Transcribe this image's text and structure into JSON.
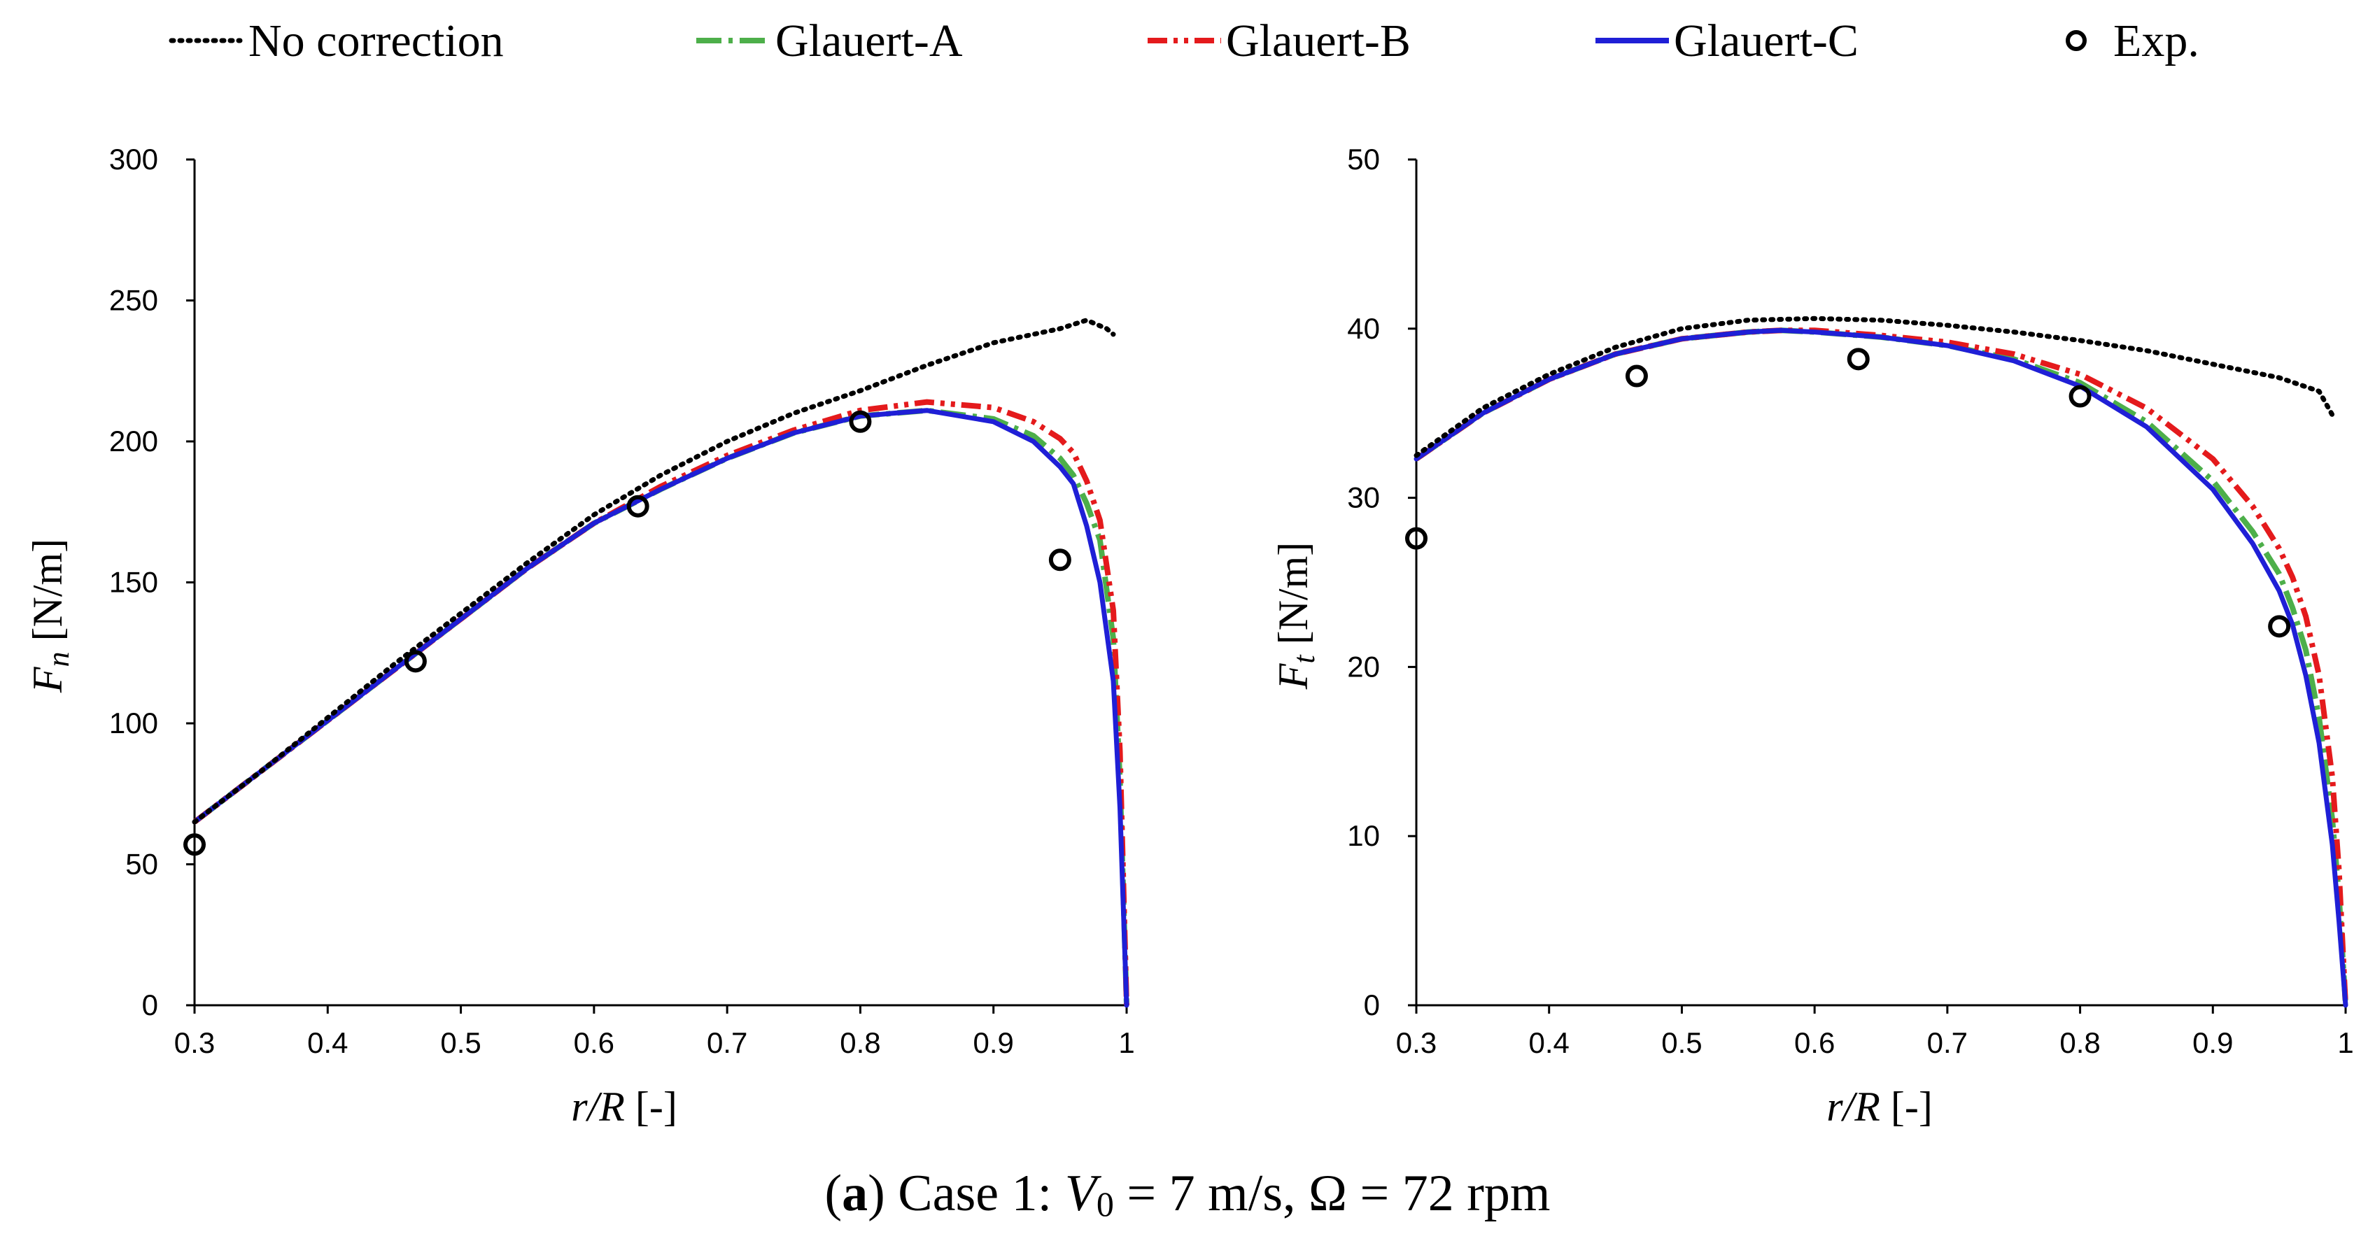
{
  "legend": [
    {
      "label": "No correction",
      "color": "#000000",
      "dash": "dot"
    },
    {
      "label": "Glauert-A",
      "color": "#4daf4a",
      "dash": "dashdot"
    },
    {
      "label": "Glauert-B",
      "color": "#e41a1c",
      "dash": "dashdotdot"
    },
    {
      "label": "Glauert-C",
      "color": "#1f1fd6",
      "dash": "solid"
    },
    {
      "label": "Exp.",
      "color": "#000000",
      "dash": "marker"
    }
  ],
  "caption": {
    "open_paren": "(",
    "letter": "a",
    "rest": ") Case 1: ",
    "v_symbol": "V",
    "v_subscript": "0",
    "v_value": " = 7 m/s, Ω = 72 rpm"
  },
  "chart_data": [
    {
      "type": "line",
      "title": "",
      "ylabel": {
        "symbol": "F",
        "subscript": "n",
        "units": "[N/m]"
      },
      "xlabel": {
        "symbol": "r/R",
        "units": "[-]"
      },
      "xlim": [
        0.3,
        1.0
      ],
      "ylim": [
        0,
        300
      ],
      "xticks": [
        0.3,
        0.4,
        0.5,
        0.6,
        0.7,
        0.8,
        0.9,
        1
      ],
      "yticks": [
        0,
        50,
        100,
        150,
        200,
        250,
        300
      ],
      "xtick_labels": [
        "0.3",
        "0.4",
        "0.5",
        "0.6",
        "0.7",
        "0.8",
        "0.9",
        "1"
      ],
      "ytick_labels": [
        "0",
        "50",
        "100",
        "150",
        "200",
        "250",
        "300"
      ],
      "series": [
        {
          "name": "No correction",
          "x": [
            0.3,
            0.35,
            0.4,
            0.45,
            0.5,
            0.55,
            0.6,
            0.65,
            0.7,
            0.75,
            0.8,
            0.85,
            0.9,
            0.95,
            0.97,
            0.985,
            0.99
          ],
          "y": [
            65,
            83,
            102,
            121,
            139,
            157,
            174,
            188,
            200,
            210,
            218,
            227,
            235,
            240,
            243,
            240,
            238
          ]
        },
        {
          "name": "Glauert-A",
          "x": [
            0.3,
            0.35,
            0.4,
            0.45,
            0.5,
            0.55,
            0.6,
            0.65,
            0.7,
            0.75,
            0.8,
            0.85,
            0.9,
            0.93,
            0.95,
            0.96,
            0.97,
            0.98,
            0.99,
            0.995,
            1.0
          ],
          "y": [
            65,
            83,
            101,
            119,
            137,
            155,
            171,
            183,
            194,
            203,
            209,
            211,
            208,
            202,
            194,
            188,
            178,
            165,
            130,
            80,
            0
          ]
        },
        {
          "name": "Glauert-B",
          "x": [
            0.3,
            0.35,
            0.4,
            0.45,
            0.5,
            0.55,
            0.6,
            0.65,
            0.7,
            0.75,
            0.8,
            0.85,
            0.9,
            0.93,
            0.95,
            0.96,
            0.97,
            0.98,
            0.99,
            0.995,
            1.0
          ],
          "y": [
            65,
            83,
            101,
            119,
            137,
            155,
            171,
            184,
            195,
            204,
            211,
            214,
            212,
            207,
            201,
            196,
            186,
            172,
            140,
            90,
            0
          ]
        },
        {
          "name": "Glauert-C",
          "x": [
            0.3,
            0.35,
            0.4,
            0.45,
            0.5,
            0.55,
            0.6,
            0.65,
            0.7,
            0.75,
            0.8,
            0.85,
            0.9,
            0.93,
            0.95,
            0.96,
            0.97,
            0.98,
            0.99,
            0.995,
            1.0
          ],
          "y": [
            65,
            83,
            101,
            119,
            137,
            155,
            171,
            183,
            194,
            203,
            209,
            211,
            207,
            200,
            191,
            185,
            170,
            150,
            115,
            70,
            0
          ]
        },
        {
          "name": "Exp.",
          "x": [
            0.3,
            0.466,
            0.633,
            0.8,
            0.95
          ],
          "y": [
            57,
            122,
            177,
            207,
            158
          ]
        }
      ]
    },
    {
      "type": "line",
      "title": "",
      "ylabel": {
        "symbol": "F",
        "subscript": "t",
        "units": "[N/m]"
      },
      "xlabel": {
        "symbol": "r/R",
        "units": "[-]"
      },
      "xlim": [
        0.3,
        1.0
      ],
      "ylim": [
        0,
        50
      ],
      "xticks": [
        0.3,
        0.4,
        0.5,
        0.6,
        0.7,
        0.8,
        0.9,
        1
      ],
      "yticks": [
        0,
        10,
        20,
        30,
        40,
        50
      ],
      "xtick_labels": [
        "0.3",
        "0.4",
        "0.5",
        "0.6",
        "0.7",
        "0.8",
        "0.9",
        "1"
      ],
      "ytick_labels": [
        "0",
        "10",
        "20",
        "30",
        "40",
        "50"
      ],
      "series": [
        {
          "name": "No correction",
          "x": [
            0.3,
            0.35,
            0.4,
            0.45,
            0.5,
            0.55,
            0.6,
            0.65,
            0.7,
            0.75,
            0.8,
            0.85,
            0.9,
            0.95,
            0.98,
            0.99
          ],
          "y": [
            32.5,
            35.3,
            37.3,
            38.9,
            40.0,
            40.5,
            40.6,
            40.5,
            40.2,
            39.8,
            39.3,
            38.7,
            37.9,
            37.1,
            36.3,
            34.9
          ]
        },
        {
          "name": "Glauert-A",
          "x": [
            0.3,
            0.35,
            0.4,
            0.45,
            0.5,
            0.55,
            0.575,
            0.6,
            0.65,
            0.7,
            0.75,
            0.8,
            0.85,
            0.9,
            0.93,
            0.95,
            0.96,
            0.97,
            0.98,
            0.99,
            0.995,
            1.0
          ],
          "y": [
            32.3,
            35.0,
            37.0,
            38.5,
            39.4,
            39.8,
            39.9,
            39.8,
            39.5,
            39.0,
            38.2,
            36.8,
            34.5,
            31.0,
            28.0,
            25.5,
            23.5,
            21.0,
            17.0,
            11.0,
            6.5,
            0
          ]
        },
        {
          "name": "Glauert-B",
          "x": [
            0.3,
            0.35,
            0.4,
            0.45,
            0.5,
            0.55,
            0.575,
            0.6,
            0.65,
            0.7,
            0.75,
            0.8,
            0.85,
            0.9,
            0.93,
            0.95,
            0.96,
            0.97,
            0.98,
            0.99,
            0.995,
            1.0
          ],
          "y": [
            32.3,
            35.0,
            37.0,
            38.5,
            39.4,
            39.8,
            39.9,
            39.9,
            39.6,
            39.2,
            38.5,
            37.3,
            35.3,
            32.3,
            29.5,
            27.0,
            25.3,
            23.0,
            19.5,
            13.5,
            8.0,
            0
          ]
        },
        {
          "name": "Glauert-C",
          "x": [
            0.3,
            0.35,
            0.4,
            0.45,
            0.5,
            0.55,
            0.575,
            0.6,
            0.65,
            0.7,
            0.75,
            0.8,
            0.85,
            0.9,
            0.93,
            0.95,
            0.96,
            0.97,
            0.98,
            0.99,
            0.995,
            1.0
          ],
          "y": [
            32.3,
            35.0,
            37.0,
            38.5,
            39.4,
            39.8,
            39.9,
            39.8,
            39.5,
            39.0,
            38.1,
            36.6,
            34.2,
            30.5,
            27.3,
            24.5,
            22.5,
            19.5,
            15.5,
            9.5,
            5.0,
            0
          ]
        },
        {
          "name": "Exp.",
          "x": [
            0.3,
            0.466,
            0.633,
            0.8,
            0.95
          ],
          "y": [
            27.6,
            37.2,
            38.2,
            36.0,
            22.4
          ]
        }
      ]
    }
  ]
}
